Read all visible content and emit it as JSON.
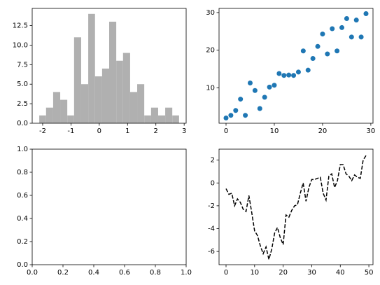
{
  "chart_data": [
    {
      "type": "histogram",
      "color": "#b0b0b0",
      "bins": [
        -2.12,
        -1.88,
        -1.63,
        -1.38,
        -1.13,
        -0.89,
        -0.64,
        -0.39,
        -0.15,
        0.1,
        0.35,
        0.6,
        0.84,
        1.09,
        1.34,
        1.59,
        1.83,
        2.08,
        2.33,
        2.58,
        2.82
      ],
      "values": [
        1,
        2,
        4,
        3,
        1,
        11,
        5,
        14,
        6,
        7,
        13,
        8,
        9,
        4,
        5,
        1,
        2,
        1,
        2,
        1
      ],
      "xlim": [
        -2.37,
        3.07
      ],
      "xticks": [
        -2,
        -1,
        0,
        1,
        2,
        3
      ],
      "ylim": [
        0,
        14.7
      ],
      "yticks": [
        {
          "value": 0,
          "label": "0.0"
        },
        {
          "value": 2.5,
          "label": "2.5"
        },
        {
          "value": 5,
          "label": "5.0"
        },
        {
          "value": 7.5,
          "label": "7.5"
        },
        {
          "value": 10,
          "label": "10.0"
        },
        {
          "value": 12.5,
          "label": "12.5"
        }
      ]
    },
    {
      "type": "scatter",
      "color": "#1f77b4",
      "x": [
        0,
        1,
        2,
        3,
        4,
        5,
        6,
        7,
        8,
        9,
        10,
        11,
        12,
        13,
        14,
        15,
        16,
        17,
        18,
        19,
        20,
        21,
        22,
        23,
        24,
        25,
        26,
        27,
        28,
        29
      ],
      "values": [
        2,
        2.7,
        4,
        7,
        2.7,
        11.3,
        9.3,
        4.5,
        7.5,
        10.2,
        10.7,
        13.8,
        13.3,
        13.4,
        13.3,
        14.2,
        19.8,
        14.7,
        17.8,
        21,
        24.3,
        19,
        25.7,
        19.8,
        26,
        28.4,
        23.5,
        28,
        23.5,
        29.7
      ],
      "xlim": [
        -1.45,
        30.45
      ],
      "xticks": [
        0,
        10,
        20,
        30
      ],
      "ylim": [
        0.6,
        31.1
      ],
      "yticks": [
        10,
        20,
        30
      ]
    },
    {
      "type": "empty",
      "xlim": [
        0,
        1
      ],
      "xticks": [
        {
          "value": 0,
          "label": "0.0"
        },
        {
          "value": 0.2,
          "label": "0.2"
        },
        {
          "value": 0.4,
          "label": "0.4"
        },
        {
          "value": 0.6,
          "label": "0.6"
        },
        {
          "value": 0.8,
          "label": "0.8"
        },
        {
          "value": 1,
          "label": "1.0"
        }
      ],
      "ylim": [
        0,
        1
      ],
      "yticks": [
        {
          "value": 0,
          "label": "0.0"
        },
        {
          "value": 0.2,
          "label": "0.2"
        },
        {
          "value": 0.4,
          "label": "0.4"
        },
        {
          "value": 0.6,
          "label": "0.6"
        },
        {
          "value": 0.8,
          "label": "0.8"
        },
        {
          "value": 1,
          "label": "1.0"
        }
      ]
    },
    {
      "type": "line",
      "color": "black",
      "linestyle": "dashed",
      "x": [
        0,
        1,
        2,
        3,
        4,
        5,
        6,
        7,
        8,
        9,
        10,
        11,
        12,
        13,
        14,
        15,
        16,
        17,
        18,
        19,
        20,
        21,
        22,
        23,
        24,
        25,
        26,
        27,
        28,
        29,
        30,
        31,
        32,
        33,
        34,
        35,
        36,
        37,
        38,
        39,
        40,
        41,
        42,
        43,
        44,
        45,
        46,
        47,
        48,
        49
      ],
      "values": [
        -0.5,
        -1.0,
        -0.9,
        -2.0,
        -1.4,
        -1.7,
        -2.3,
        -2.5,
        -1.1,
        -2.6,
        -4.2,
        -4.6,
        -5.5,
        -6.2,
        -5.6,
        -6.7,
        -5.8,
        -4.4,
        -3.9,
        -4.8,
        -5.4,
        -2.8,
        -3.0,
        -2.4,
        -2.0,
        -1.9,
        -0.9,
        0.0,
        -1.6,
        -0.4,
        0.3,
        0.3,
        0.4,
        0.5,
        -0.9,
        -1.5,
        0.6,
        0.8,
        -0.4,
        0.2,
        1.6,
        1.6,
        0.8,
        0.6,
        0.2,
        0.7,
        0.5,
        0.4,
        2.0,
        2.4
      ],
      "xlim": [
        -2.45,
        51.45
      ],
      "xticks": [
        0,
        10,
        20,
        30,
        40,
        50
      ],
      "ylim": [
        -7.16,
        2.96
      ],
      "yticks": [
        -6,
        -4,
        -2,
        0,
        2
      ]
    }
  ]
}
